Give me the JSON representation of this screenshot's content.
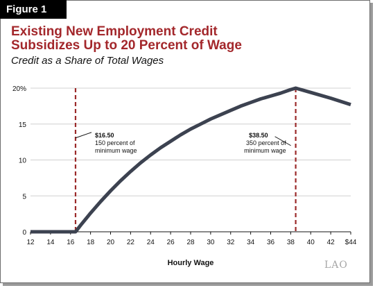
{
  "figure_label": "Figure 1",
  "title_line1": "Existing New Employment Credit",
  "title_line2": "Subsidizes Up to 20 Percent of Wage",
  "subtitle": "Credit as a Share of Total Wages",
  "logo_text": "LAO",
  "colors": {
    "title": "#a3272b",
    "line": "#3c4250",
    "marker": "#9b2a2a",
    "grid": "#d0d0d0"
  },
  "chart_data": {
    "type": "line",
    "xlabel": "Hourly Wage",
    "ylabel": "",
    "xlim": [
      12,
      44
    ],
    "ylim": [
      0,
      20
    ],
    "x_ticks": [
      12,
      14,
      16,
      18,
      20,
      22,
      24,
      26,
      28,
      30,
      32,
      34,
      36,
      38,
      40,
      42,
      44
    ],
    "x_tick_labels": [
      "12",
      "14",
      "16",
      "18",
      "20",
      "22",
      "24",
      "26",
      "28",
      "30",
      "32",
      "34",
      "36",
      "38",
      "40",
      "42",
      "$44"
    ],
    "y_ticks": [
      0,
      5,
      10,
      15,
      20
    ],
    "y_tick_labels": [
      "0",
      "5",
      "10",
      "15",
      "20%"
    ],
    "grid": true,
    "series": [
      {
        "x": [
          12,
          16.5,
          17,
          18,
          19,
          20,
          21,
          22,
          23,
          24,
          25,
          26,
          27,
          28,
          29,
          30,
          31,
          32,
          33,
          34,
          35,
          36,
          37,
          38,
          38.5,
          40,
          42,
          44
        ],
        "y": [
          0,
          0,
          0.9,
          2.6,
          4.2,
          5.7,
          7.1,
          8.4,
          9.6,
          10.7,
          11.7,
          12.6,
          13.5,
          14.3,
          15.0,
          15.7,
          16.3,
          16.9,
          17.5,
          18.0,
          18.5,
          18.9,
          19.3,
          19.8,
          20.0,
          19.4,
          18.6,
          17.7
        ]
      }
    ],
    "reference_lines": [
      {
        "x": 16.5
      },
      {
        "x": 38.5
      }
    ],
    "annotations": [
      {
        "x": 16.5,
        "y": 15,
        "title": "$16.50",
        "line1": "150 percent of",
        "line2": "minimum wage"
      },
      {
        "x": 38.5,
        "y": 15,
        "title": "$38.50",
        "line1": "350 percent of",
        "line2": "minimum wage"
      }
    ]
  }
}
